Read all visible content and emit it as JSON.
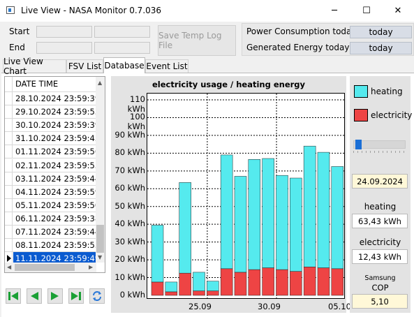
{
  "window": {
    "title": "Live View - NASA Monitor 0.7.036",
    "minimize_symbol": "─",
    "maximize_symbol": "☐",
    "close_symbol": "✕"
  },
  "top": {
    "start_label": "Start",
    "end_label": "End",
    "save_button": "Save Temp Log File"
  },
  "energy": {
    "power_label": "Power Consumption today",
    "power_value": "today",
    "generated_label": "Generated Energy today",
    "generated_value": "today"
  },
  "tabs": [
    "Live View Chart",
    "FSV List",
    "Database",
    "Event List"
  ],
  "active_tab": "Database",
  "grid": {
    "header": "DATE TIME",
    "rows": [
      "28.10.2024 23:59:39",
      "29.10.2024 23:59:55",
      "30.10.2024 23:59:39",
      "31.10.2024 23:59:43",
      "01.11.2024 23:59:56",
      "02.11.2024 23:59:55",
      "03.11.2024 23:59:44",
      "04.11.2024 23:59:59",
      "05.11.2024 23:59:50",
      "06.11.2024 23:59:38",
      "07.11.2024 23:59:44",
      "08.11.2024 23:59:55",
      "11.11.2024 23:59:49"
    ],
    "selected_index": 12
  },
  "nav_icons": [
    "first-icon",
    "prev-icon",
    "next-icon",
    "last-icon",
    "refresh-icon"
  ],
  "chart_data": {
    "type": "bar",
    "title": "electricity usage / heating energy",
    "y_unit": "kWh",
    "ylim": [
      0,
      110
    ],
    "yticks": [
      0,
      10,
      20,
      30,
      40,
      50,
      60,
      70,
      80,
      90,
      100,
      110
    ],
    "ytick_labels": [
      "0 kWh",
      "10 kWh",
      "20 kWh",
      "30 kWh",
      "40 kWh",
      "50 kWh",
      "60 kWh",
      "70 kWh",
      "80 kWh",
      "90 kWh",
      "100 kWh",
      "110 kWh"
    ],
    "x_labels": [
      "25.09",
      "30.09",
      "05.10"
    ],
    "stacked": true,
    "series": [
      {
        "name": "electricity",
        "color": "#ee4444",
        "values": [
          7.5,
          2,
          12.5,
          2.5,
          2.5,
          15,
          13,
          14.5,
          15.5,
          14.5,
          13.5,
          16,
          15.5,
          15
        ]
      },
      {
        "name": "heating",
        "color": "#55eaee",
        "values": [
          32,
          5.5,
          51,
          10.5,
          5.5,
          64,
          54,
          62,
          61.5,
          53,
          52.5,
          68,
          65,
          57.5
        ]
      }
    ],
    "grid": true
  },
  "legend": {
    "heating_label": "heating",
    "electricity_label": "electricity"
  },
  "right_panel": {
    "slider_value": 0.05,
    "date": "24.09.2024",
    "heating_label": "heating",
    "heating_value": "63,43 kWh",
    "electricity_label": "electricity",
    "electricity_value": "12,43 kWh",
    "brand_label": "Samsung",
    "cop_label": "COP",
    "cop_value": "5,10"
  }
}
